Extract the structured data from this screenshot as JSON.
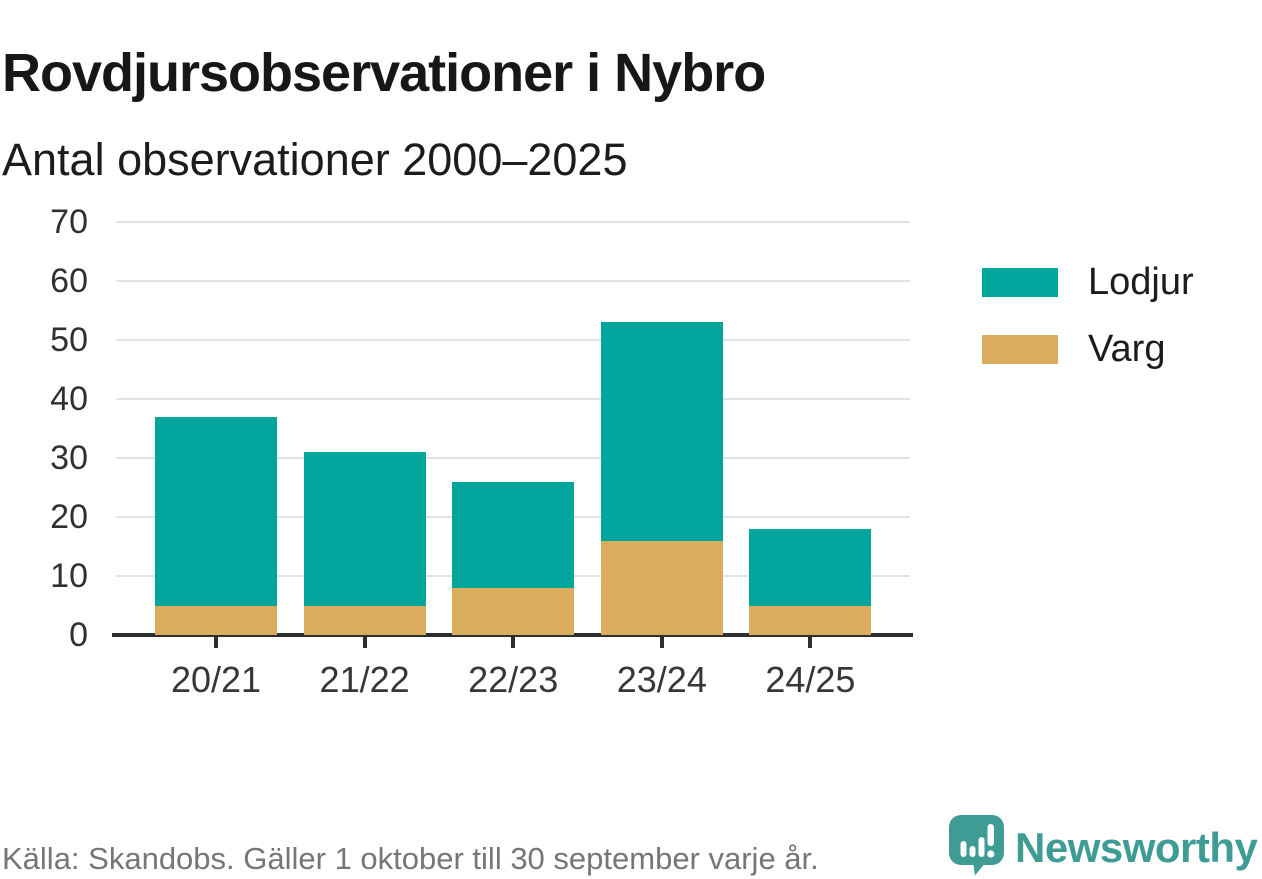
{
  "header": {
    "title": "Rovdjursobservationer i Nybro",
    "subtitle": "Antal observationer 2000–2025"
  },
  "chart_data": {
    "type": "bar",
    "stacked": true,
    "title": "Rovdjursobservationer i Nybro",
    "subtitle": "Antal observationer 2000–2025",
    "categories": [
      "20/21",
      "21/22",
      "22/23",
      "23/24",
      "24/25"
    ],
    "series": [
      {
        "name": "Varg",
        "color": "#d9ad5d",
        "values": [
          5,
          5,
          8,
          16,
          5
        ]
      },
      {
        "name": "Lodjur",
        "color": "#00a59c",
        "values": [
          32,
          26,
          18,
          37,
          13
        ]
      }
    ],
    "totals": [
      37,
      31,
      26,
      53,
      18
    ],
    "xlabel": "",
    "ylabel": "",
    "ylim": [
      0,
      70
    ],
    "yticks": [
      0,
      10,
      20,
      30,
      40,
      50,
      60,
      70
    ],
    "grid": "horizontal",
    "legend_position": "right"
  },
  "legend": {
    "items": [
      {
        "label": "Lodjur",
        "color": "#00a59c"
      },
      {
        "label": "Varg",
        "color": "#d9ad5d"
      }
    ]
  },
  "footer": {
    "source": "Källa: Skandobs. Gäller 1 oktober till 30 september varje år.",
    "brand": "Newsworthy"
  },
  "theme": {
    "accent_teal": "#00a59c",
    "accent_gold": "#d9ad5d",
    "brand_teal": "#3e9c95",
    "gridline": "#e3e3e3",
    "axis": "#2e2e2e",
    "text_dark": "#171717",
    "text_muted": "#767676"
  }
}
